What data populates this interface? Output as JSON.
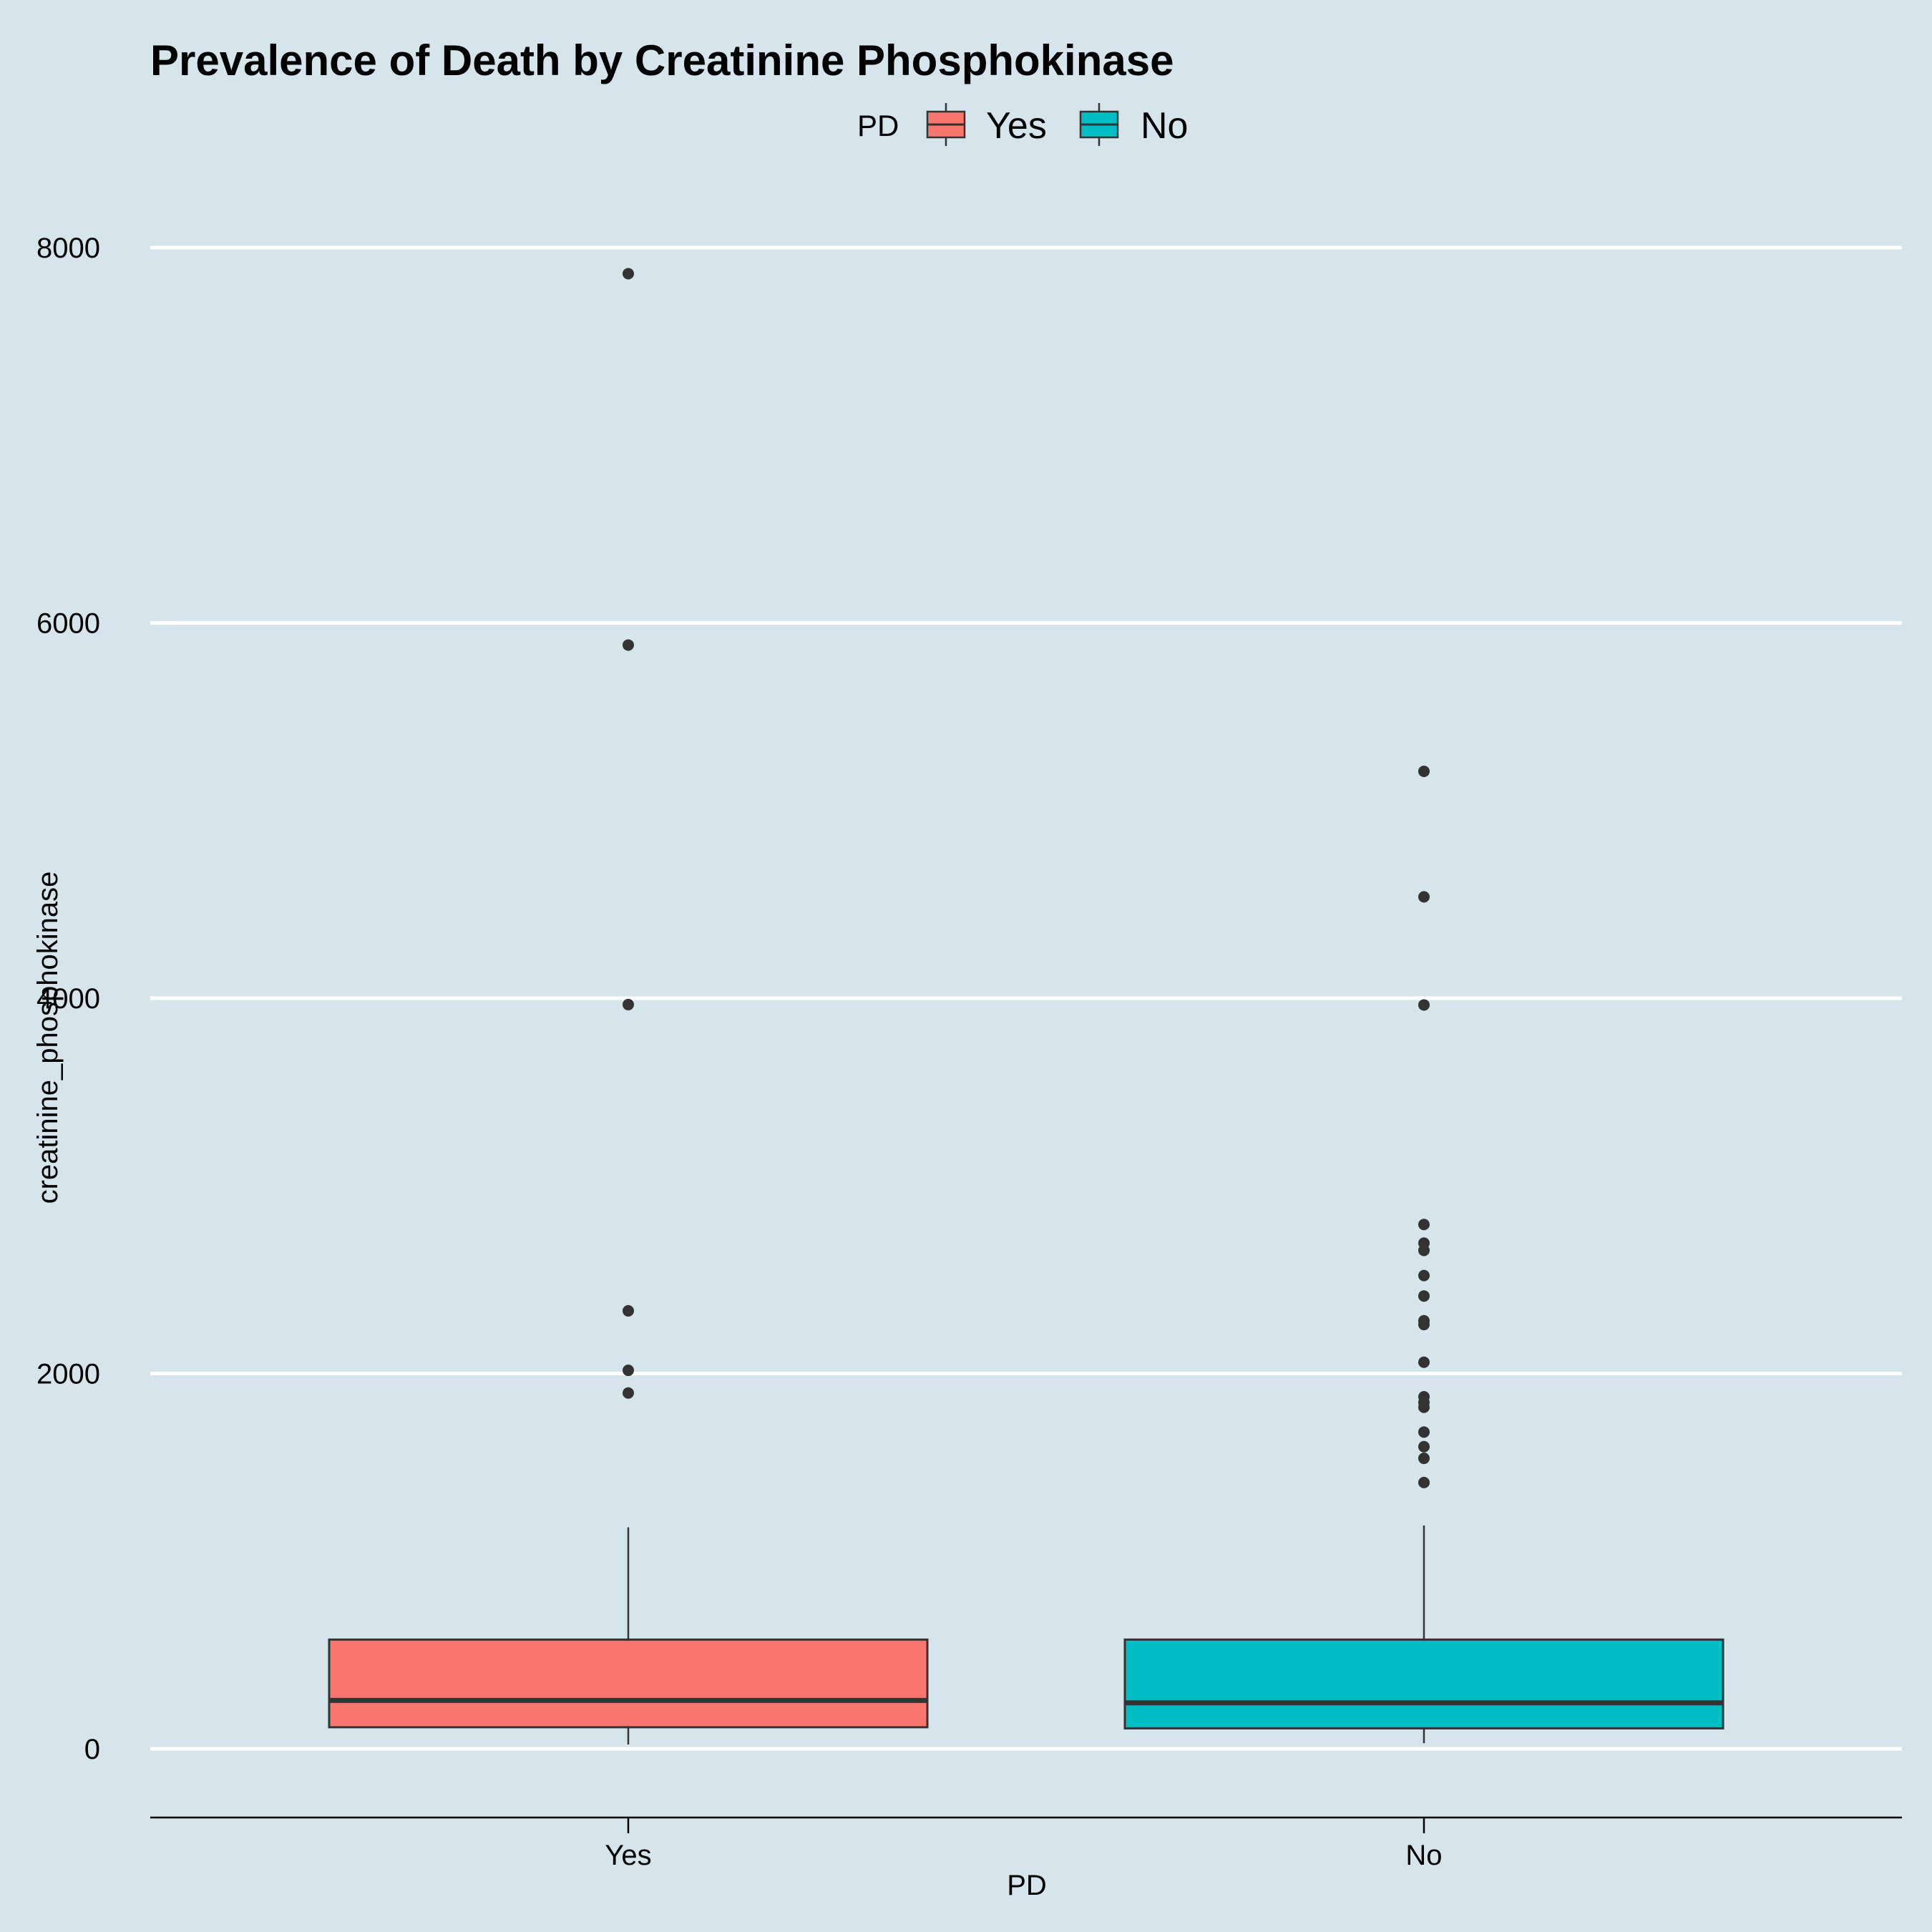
{
  "chart_data": {
    "type": "boxplot",
    "title": "Prevalence of Death by Creatinine Phosphokinase",
    "xlabel": "PD",
    "ylabel": "creatinine_phosphokinase",
    "ylim": [
      -500,
      8350
    ],
    "yticks": [
      0,
      2000,
      4000,
      6000,
      8000
    ],
    "grid": "horizontal major lines",
    "legend": {
      "title": "PD",
      "placement": "top",
      "entries": [
        "Yes",
        "No"
      ]
    },
    "categories": [
      "Yes",
      "No"
    ],
    "series": [
      {
        "name": "Yes",
        "color": "#f8766d",
        "q1": 115,
        "median": 258,
        "q3": 582,
        "whisker_low": 23,
        "whisker_high": 1180,
        "outliers": [
          7861,
          5882,
          3966,
          2334,
          2017,
          1896
        ]
      },
      {
        "name": "No",
        "color": "#00bfc4",
        "q1": 109,
        "median": 245,
        "q3": 582,
        "whisker_low": 30,
        "whisker_high": 1190,
        "outliers": [
          5209,
          4540,
          3964,
          2794,
          2695,
          2656,
          2522,
          2413,
          2281,
          2261,
          2060,
          1876,
          1846,
          1820,
          1688,
          1610,
          1548,
          1419
        ]
      }
    ],
    "colors": {
      "background": "#d6e4eb",
      "gridline": "#ffffff",
      "box_outline": "#333333",
      "axis_line": "#000000"
    }
  }
}
